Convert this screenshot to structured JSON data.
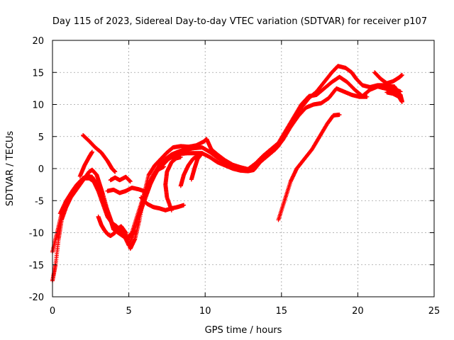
{
  "chart_data": {
    "type": "scatter",
    "title": "Day 115 of 2023, Sidereal Day-to-day VTEC variation (SDTVAR) for receiver p107",
    "xlabel": "GPS time / hours",
    "ylabel": "SDTVAR / TECUs",
    "xlim": [
      0,
      25
    ],
    "ylim": [
      -20,
      20
    ],
    "xticks": [
      0,
      5,
      10,
      15,
      20,
      25
    ],
    "yticks": [
      -20,
      -15,
      -10,
      -5,
      0,
      5,
      10,
      15,
      20
    ],
    "grid": true,
    "marker": "+",
    "color": "#ff0000",
    "series": [
      {
        "points": [
          [
            0,
            -17.5
          ],
          [
            0.2,
            -15
          ],
          [
            0.4,
            -11
          ],
          [
            0.6,
            -8
          ],
          [
            0.9,
            -6
          ],
          [
            1.2,
            -4.5
          ],
          [
            1.5,
            -3.5
          ],
          [
            1.8,
            -2.5
          ],
          [
            2.1,
            -1.5
          ],
          [
            2.4,
            -0.5
          ],
          [
            2.6,
            -0.2
          ],
          [
            2.9,
            -1
          ],
          [
            3.1,
            -2.5
          ],
          [
            3.3,
            -4
          ],
          [
            3.6,
            -6.5
          ],
          [
            3.9,
            -8.5
          ],
          [
            4.2,
            -9.5
          ],
          [
            4.5,
            -9
          ],
          [
            4.8,
            -10
          ],
          [
            5.1,
            -12.5
          ],
          [
            5.4,
            -11
          ],
          [
            5.7,
            -8
          ],
          [
            6,
            -4
          ],
          [
            6.3,
            -1
          ],
          [
            6.7,
            0.5
          ],
          [
            7.1,
            1.5
          ],
          [
            7.5,
            2.5
          ],
          [
            7.9,
            3.3
          ],
          [
            8.4,
            3.5
          ],
          [
            8.9,
            3.4
          ],
          [
            9.4,
            3.6
          ],
          [
            9.9,
            4.2
          ],
          [
            10.1,
            4.6
          ],
          [
            10.4,
            3
          ],
          [
            10.8,
            2.2
          ],
          [
            11.3,
            1.3
          ],
          [
            11.8,
            0.6
          ],
          [
            12.3,
            0.2
          ],
          [
            12.8,
            -0.1
          ],
          [
            13.3,
            0.4
          ],
          [
            13.8,
            1.5
          ],
          [
            14.3,
            2.5
          ],
          [
            14.8,
            3.5
          ],
          [
            15.3,
            5.5
          ],
          [
            15.8,
            7.5
          ],
          [
            16.3,
            9.5
          ],
          [
            16.8,
            11
          ],
          [
            17.3,
            12
          ],
          [
            17.8,
            13.5
          ],
          [
            18.3,
            15
          ],
          [
            18.7,
            16
          ],
          [
            19.2,
            15.7
          ],
          [
            19.6,
            15
          ],
          [
            19.9,
            14
          ],
          [
            20.3,
            13
          ],
          [
            20.8,
            12.7
          ],
          [
            21.3,
            13
          ],
          [
            21.8,
            13
          ],
          [
            22.3,
            12.5
          ],
          [
            22.8,
            12
          ]
        ]
      },
      {
        "points": [
          [
            0,
            -13
          ],
          [
            0.3,
            -10
          ],
          [
            0.6,
            -7
          ],
          [
            0.9,
            -5.5
          ],
          [
            1.2,
            -4
          ],
          [
            1.5,
            -3
          ],
          [
            1.8,
            -2
          ],
          [
            2.1,
            -1.5
          ],
          [
            2.4,
            -1.5
          ],
          [
            2.7,
            -2
          ],
          [
            3,
            -3.5
          ],
          [
            3.3,
            -5.5
          ],
          [
            3.6,
            -7.5
          ],
          [
            3.9,
            -8.5
          ],
          [
            4.2,
            -9
          ],
          [
            4.6,
            -10
          ],
          [
            5,
            -12
          ],
          [
            5.4,
            -9.5
          ],
          [
            5.8,
            -6
          ],
          [
            6.2,
            -3
          ],
          [
            6.6,
            -1
          ],
          [
            7,
            0.5
          ],
          [
            7.4,
            1.5
          ],
          [
            7.8,
            2.2
          ],
          [
            8.3,
            2.7
          ],
          [
            8.8,
            3
          ],
          [
            9.3,
            3.2
          ],
          [
            9.8,
            3.3
          ],
          [
            10.3,
            2.6
          ],
          [
            10.8,
            1.7
          ],
          [
            11.3,
            1.1
          ],
          [
            11.8,
            0.5
          ],
          [
            12.3,
            0.2
          ],
          [
            12.8,
            -0.1
          ],
          [
            13.3,
            0.8
          ],
          [
            13.8,
            2
          ],
          [
            14.3,
            3
          ],
          [
            14.8,
            4
          ],
          [
            15.3,
            6
          ],
          [
            15.8,
            8
          ],
          [
            16.3,
            10
          ],
          [
            16.8,
            11.3
          ],
          [
            17.3,
            11.5
          ],
          [
            17.8,
            12.5
          ],
          [
            18.3,
            13.5
          ],
          [
            18.8,
            14.3
          ],
          [
            19.3,
            13.5
          ],
          [
            19.8,
            12.3
          ],
          [
            20.3,
            11.3
          ],
          [
            20.8,
            12.3
          ],
          [
            21.3,
            12.8
          ],
          [
            21.8,
            12.5
          ],
          [
            22.3,
            12.2
          ],
          [
            22.8,
            11.5
          ]
        ]
      },
      {
        "points": [
          [
            0.5,
            -7
          ],
          [
            0.9,
            -5
          ],
          [
            1.3,
            -3.5
          ],
          [
            1.6,
            -2.5
          ],
          [
            2,
            -1.5
          ],
          [
            2.3,
            -1.2
          ],
          [
            2.6,
            -1.3
          ],
          [
            2.9,
            -2.5
          ],
          [
            3.2,
            -4
          ],
          [
            3.5,
            -6
          ],
          [
            3.8,
            -8
          ],
          [
            4,
            -9.5
          ],
          [
            4.3,
            -10
          ],
          [
            4.6,
            -10.5
          ],
          [
            4.9,
            -11
          ],
          [
            5.2,
            -10
          ],
          [
            5.6,
            -7
          ],
          [
            6,
            -4
          ],
          [
            6.4,
            -2
          ],
          [
            6.8,
            -0.5
          ],
          [
            7.2,
            0.5
          ],
          [
            7.6,
            1.5
          ],
          [
            8,
            2
          ],
          [
            8.4,
            2.3
          ],
          [
            8.8,
            2.4
          ],
          [
            9.3,
            2.4
          ],
          [
            9.8,
            2.4
          ],
          [
            10.3,
            1.8
          ],
          [
            10.8,
            1
          ],
          [
            11.3,
            0.5
          ],
          [
            11.8,
            0
          ],
          [
            12.3,
            -0.3
          ],
          [
            12.8,
            -0.4
          ],
          [
            13.2,
            -0.2
          ],
          [
            13.6,
            1
          ],
          [
            14.1,
            2
          ],
          [
            14.6,
            3
          ],
          [
            15.1,
            4.5
          ],
          [
            15.6,
            6.5
          ],
          [
            16.1,
            8.2
          ],
          [
            16.6,
            9.5
          ],
          [
            17.1,
            10
          ],
          [
            17.6,
            10.2
          ],
          [
            18.1,
            11
          ],
          [
            18.6,
            12.5
          ],
          [
            19.1,
            12
          ],
          [
            19.6,
            11.5
          ],
          [
            20.1,
            11.2
          ],
          [
            20.6,
            11.2
          ]
        ]
      },
      {
        "points": [
          [
            2,
            5.2
          ],
          [
            2.4,
            4.3
          ],
          [
            2.8,
            3.3
          ],
          [
            3.2,
            2.5
          ],
          [
            3.6,
            1.2
          ],
          [
            3.9,
            0
          ],
          [
            4.1,
            -0.5
          ]
        ]
      },
      {
        "points": [
          [
            1.8,
            -1.2
          ],
          [
            2.1,
            0.5
          ],
          [
            2.4,
            1.8
          ],
          [
            2.6,
            2.6
          ]
        ]
      },
      {
        "points": [
          [
            3,
            -7.5
          ],
          [
            3.2,
            -8.8
          ],
          [
            3.4,
            -9.6
          ],
          [
            3.6,
            -10.2
          ],
          [
            3.8,
            -10.5
          ],
          [
            4.1,
            -10
          ]
        ]
      },
      {
        "points": [
          [
            3.6,
            -3.5
          ],
          [
            4,
            -3.3
          ],
          [
            4.4,
            -3.8
          ],
          [
            4.8,
            -3.5
          ],
          [
            5.2,
            -3
          ],
          [
            5.6,
            -3.2
          ],
          [
            6,
            -3.5
          ]
        ]
      },
      {
        "points": [
          [
            3.8,
            -1.8
          ],
          [
            4.1,
            -1.4
          ],
          [
            4.4,
            -1.8
          ],
          [
            4.8,
            -1.3
          ],
          [
            5.1,
            -2
          ]
        ]
      },
      {
        "points": [
          [
            5.8,
            -4.5
          ],
          [
            6.2,
            -5.5
          ],
          [
            6.6,
            -6
          ],
          [
            7,
            -6.2
          ],
          [
            7.4,
            -6.5
          ],
          [
            7.8,
            -6.2
          ],
          [
            8.2,
            -6
          ],
          [
            8.6,
            -5.7
          ]
        ]
      },
      {
        "points": [
          [
            7.8,
            -6.5
          ],
          [
            7.5,
            -4.5
          ],
          [
            7.4,
            -2.5
          ],
          [
            7.5,
            -0.5
          ],
          [
            7.8,
            1
          ],
          [
            8.1,
            1.6
          ],
          [
            8.4,
            1.8
          ]
        ]
      },
      {
        "points": [
          [
            5.6,
            -7.8
          ],
          [
            5.8,
            -6.5
          ],
          [
            6.1,
            -4.5
          ],
          [
            6.4,
            -2.5
          ],
          [
            6.7,
            -1
          ],
          [
            7,
            0.3
          ]
        ]
      },
      {
        "points": [
          [
            6.2,
            -3.8
          ],
          [
            6.5,
            -1.8
          ],
          [
            6.9,
            -0.2
          ],
          [
            7.3,
            0.3
          ]
        ]
      },
      {
        "points": [
          [
            8.4,
            -2.7
          ],
          [
            8.6,
            -1
          ],
          [
            8.9,
            0.5
          ],
          [
            9.2,
            1.5
          ],
          [
            9.5,
            2
          ]
        ]
      },
      {
        "points": [
          [
            9.1,
            -1.7
          ],
          [
            9.3,
            0
          ],
          [
            9.5,
            1.5
          ],
          [
            9.8,
            2.4
          ]
        ]
      },
      {
        "points": [
          [
            14.8,
            -8
          ],
          [
            15.2,
            -5
          ],
          [
            15.6,
            -2
          ],
          [
            16,
            0
          ],
          [
            16.5,
            1.5
          ],
          [
            17,
            3
          ],
          [
            17.5,
            5
          ],
          [
            18,
            7
          ],
          [
            18.4,
            8.3
          ],
          [
            18.8,
            8.4
          ]
        ]
      },
      {
        "points": [
          [
            21.1,
            15
          ],
          [
            21.5,
            14
          ],
          [
            21.9,
            13.3
          ],
          [
            22.3,
            13.6
          ],
          [
            22.7,
            14.2
          ],
          [
            22.9,
            14.6
          ]
        ]
      },
      {
        "points": [
          [
            21.6,
            12.6
          ],
          [
            22,
            12.8
          ],
          [
            22.4,
            12.8
          ],
          [
            22.8,
            11.4
          ],
          [
            22.9,
            10.5
          ]
        ]
      },
      {
        "points": [
          [
            21.9,
            11.9
          ],
          [
            22.3,
            11.7
          ],
          [
            22.7,
            11.2
          ],
          [
            22.9,
            10.4
          ]
        ]
      }
    ]
  }
}
